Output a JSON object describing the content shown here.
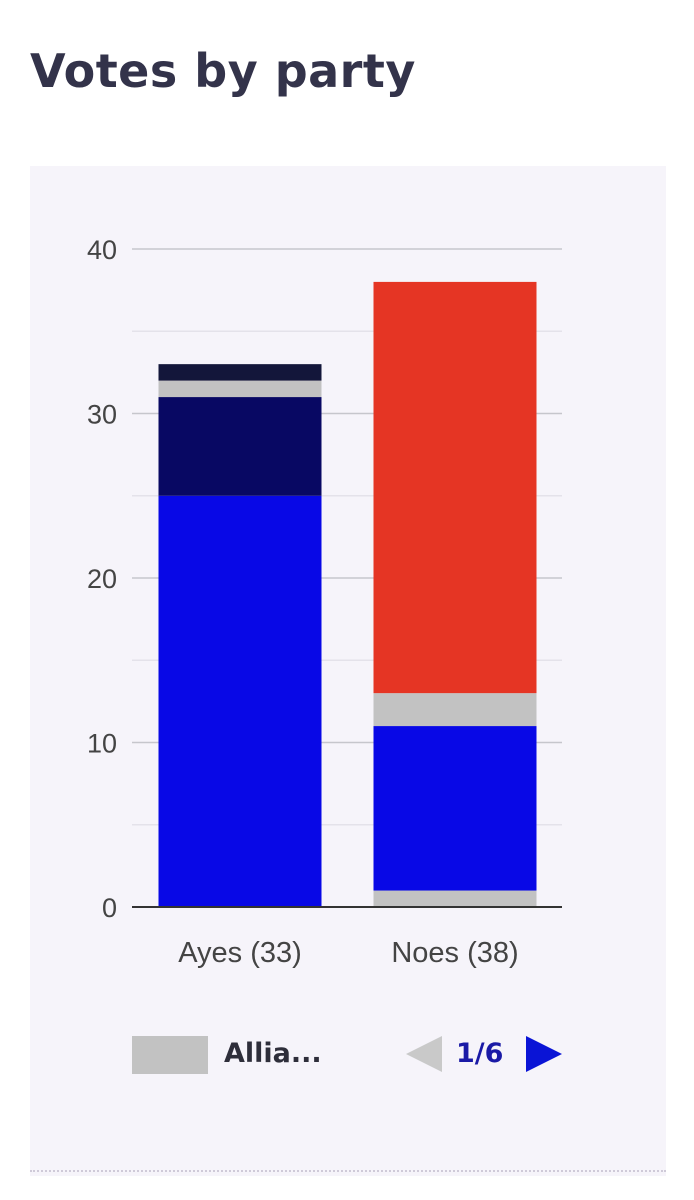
{
  "title": "Votes by party",
  "chart_data": {
    "type": "bar",
    "stacked": true,
    "categories": [
      "Ayes (33)",
      "Noes (38)"
    ],
    "ylim": [
      0,
      40
    ],
    "yticks": [
      0,
      10,
      20,
      30,
      40
    ],
    "grid": true,
    "series": [
      {
        "values": [
          0,
          1
        ],
        "color": "#c2c2c2"
      },
      {
        "values": [
          25,
          10
        ],
        "color": "#0808e6"
      },
      {
        "values": [
          6,
          0
        ],
        "color": "#080863"
      },
      {
        "values": [
          1,
          2
        ],
        "color": "#c2c2c2"
      },
      {
        "values": [
          1,
          0
        ],
        "color": "#13163a"
      },
      {
        "values": [
          0,
          25
        ],
        "color": "#e53524"
      }
    ]
  },
  "legend": {
    "label": "Allia...",
    "swatch_color": "#c2c2c2"
  },
  "pager": {
    "text": "1/6"
  }
}
